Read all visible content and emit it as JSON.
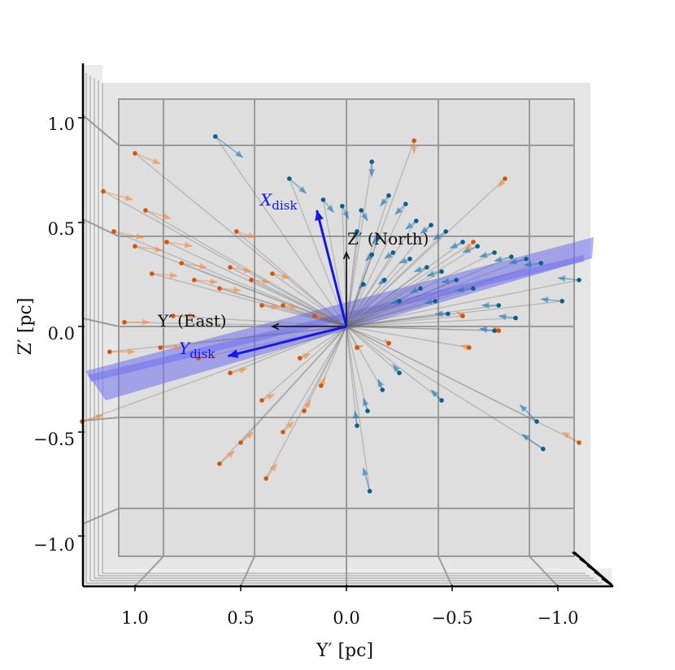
{
  "chart_data": {
    "type": "3d-quiver",
    "title": "",
    "xlabel": "Y′ [pc]",
    "ylabel": "Z′ [pc]",
    "x_ticks": [
      "1.0",
      "0.5",
      "0.0",
      "−0.5",
      "−1.0"
    ],
    "y_ticks": [
      "1.0",
      "0.5",
      "0.0",
      "−0.5",
      "−1.0"
    ],
    "xlim": [
      1.15,
      -1.15
    ],
    "ylim": [
      -1.2,
      1.2
    ],
    "grid": true,
    "axis_annotations": [
      {
        "text": "Z′ (North)",
        "color": "#111111"
      },
      {
        "text": "Y′ (East)",
        "color": "#111111"
      },
      {
        "text": "X",
        "sub": "disk",
        "color": "#1515ee"
      },
      {
        "text": "Y",
        "sub": "disk",
        "color": "#1515ee"
      }
    ],
    "reference_vectors": [
      {
        "name": "Z′ (North)",
        "dx": 0.0,
        "dy": 0.35,
        "color": "#111111"
      },
      {
        "name": "Y′ (East)",
        "dx": 0.35,
        "dy": 0.0,
        "color": "#111111"
      },
      {
        "name": "Xdisk",
        "dx": 0.14,
        "dy": 0.55,
        "color": "#1515ee"
      },
      {
        "name": "Ydisk",
        "dx": 0.56,
        "dy": -0.14,
        "color": "#1515ee"
      }
    ],
    "disk_plane": {
      "color": "#6f6ff0",
      "slope": 0.26
    },
    "series": [
      {
        "color": "#1f77b4",
        "point_color": "#0b5f8f",
        "points": [
          {
            "x": 0.62,
            "y": 0.9,
            "dx": -0.13,
            "dy": -0.1
          },
          {
            "x": 0.27,
            "y": 0.7,
            "dx": -0.08,
            "dy": -0.07
          },
          {
            "x": 0.11,
            "y": 0.6,
            "dx": -0.05,
            "dy": -0.06
          },
          {
            "x": 0.02,
            "y": 0.57,
            "dx": -0.03,
            "dy": -0.06
          },
          {
            "x": -0.07,
            "y": 0.55,
            "dx": -0.03,
            "dy": -0.05
          },
          {
            "x": -0.12,
            "y": 0.78,
            "dx": 0.0,
            "dy": -0.07
          },
          {
            "x": -0.2,
            "y": 0.62,
            "dx": 0.04,
            "dy": -0.05
          },
          {
            "x": -0.28,
            "y": 0.58,
            "dx": 0.05,
            "dy": -0.05
          },
          {
            "x": -0.33,
            "y": 0.5,
            "dx": 0.05,
            "dy": -0.04
          },
          {
            "x": -0.4,
            "y": 0.48,
            "dx": 0.05,
            "dy": -0.04
          },
          {
            "x": -0.47,
            "y": 0.45,
            "dx": 0.06,
            "dy": -0.04
          },
          {
            "x": -0.55,
            "y": 0.4,
            "dx": 0.06,
            "dy": -0.03
          },
          {
            "x": -0.62,
            "y": 0.38,
            "dx": 0.07,
            "dy": -0.03
          },
          {
            "x": -0.7,
            "y": 0.35,
            "dx": 0.07,
            "dy": -0.02
          },
          {
            "x": -0.78,
            "y": 0.33,
            "dx": 0.08,
            "dy": -0.02
          },
          {
            "x": -0.85,
            "y": 0.32,
            "dx": 0.08,
            "dy": -0.02
          },
          {
            "x": -0.92,
            "y": 0.3,
            "dx": 0.08,
            "dy": -0.01
          },
          {
            "x": -0.3,
            "y": 0.32,
            "dx": 0.05,
            "dy": -0.02
          },
          {
            "x": -0.38,
            "y": 0.28,
            "dx": 0.06,
            "dy": -0.02
          },
          {
            "x": -0.45,
            "y": 0.26,
            "dx": 0.07,
            "dy": -0.02
          },
          {
            "x": -0.52,
            "y": 0.22,
            "dx": 0.07,
            "dy": -0.01
          },
          {
            "x": -0.6,
            "y": 0.18,
            "dx": 0.08,
            "dy": -0.01
          },
          {
            "x": -0.22,
            "y": 0.35,
            "dx": 0.04,
            "dy": -0.03
          },
          {
            "x": -0.15,
            "y": 0.42,
            "dx": 0.03,
            "dy": -0.03
          },
          {
            "x": -0.72,
            "y": 0.1,
            "dx": 0.08,
            "dy": 0.0
          },
          {
            "x": -0.8,
            "y": 0.04,
            "dx": 0.08,
            "dy": 0.01
          },
          {
            "x": -1.1,
            "y": 0.22,
            "dx": 0.1,
            "dy": 0.01
          },
          {
            "x": -1.02,
            "y": 0.12,
            "dx": 0.1,
            "dy": 0.01
          },
          {
            "x": -0.7,
            "y": -0.02,
            "dx": 0.07,
            "dy": 0.01
          },
          {
            "x": -0.48,
            "y": 0.06,
            "dx": 0.06,
            "dy": 0.0
          },
          {
            "x": -0.25,
            "y": -0.22,
            "dx": 0.03,
            "dy": 0.04
          },
          {
            "x": -0.17,
            "y": -0.3,
            "dx": 0.02,
            "dy": 0.05
          },
          {
            "x": -0.1,
            "y": -0.4,
            "dx": 0.02,
            "dy": 0.06
          },
          {
            "x": -0.05,
            "y": -0.47,
            "dx": 0.01,
            "dy": 0.07
          },
          {
            "x": -0.11,
            "y": -0.78,
            "dx": 0.03,
            "dy": 0.11
          },
          {
            "x": -0.45,
            "y": -0.35,
            "dx": 0.05,
            "dy": 0.05
          },
          {
            "x": -0.9,
            "y": -0.45,
            "dx": 0.08,
            "dy": 0.08
          },
          {
            "x": -0.93,
            "y": -0.58,
            "dx": 0.1,
            "dy": 0.07
          },
          {
            "x": -0.08,
            "y": 0.2,
            "dx": 0.02,
            "dy": -0.02
          },
          {
            "x": -0.18,
            "y": 0.22,
            "dx": 0.03,
            "dy": -0.02
          },
          {
            "x": -0.35,
            "y": 0.18,
            "dx": 0.05,
            "dy": -0.02
          },
          {
            "x": -0.42,
            "y": 0.12,
            "dx": 0.05,
            "dy": -0.01
          },
          {
            "x": -0.25,
            "y": 0.12,
            "dx": 0.04,
            "dy": -0.01
          },
          {
            "x": -0.12,
            "y": 0.34,
            "dx": 0.03,
            "dy": -0.03
          },
          {
            "x": -0.05,
            "y": 0.45,
            "dx": 0.02,
            "dy": -0.04
          }
        ]
      },
      {
        "color": "#f08a3c",
        "point_color": "#d1550a",
        "points": [
          {
            "x": 1.0,
            "y": 0.82,
            "dx": -0.12,
            "dy": -0.05
          },
          {
            "x": 1.15,
            "y": 0.64,
            "dx": -0.14,
            "dy": -0.04
          },
          {
            "x": 0.95,
            "y": 0.55,
            "dx": -0.12,
            "dy": -0.04
          },
          {
            "x": 1.1,
            "y": 0.45,
            "dx": -0.14,
            "dy": -0.03
          },
          {
            "x": 1.0,
            "y": 0.38,
            "dx": -0.13,
            "dy": -0.02
          },
          {
            "x": 0.85,
            "y": 0.4,
            "dx": -0.12,
            "dy": -0.02
          },
          {
            "x": 0.78,
            "y": 0.3,
            "dx": -0.12,
            "dy": -0.02
          },
          {
            "x": 0.92,
            "y": 0.25,
            "dx": -0.12,
            "dy": -0.01
          },
          {
            "x": 0.72,
            "y": 0.22,
            "dx": -0.11,
            "dy": -0.01
          },
          {
            "x": 0.6,
            "y": 0.18,
            "dx": -0.1,
            "dy": -0.01
          },
          {
            "x": 0.55,
            "y": 0.28,
            "dx": -0.1,
            "dy": -0.02
          },
          {
            "x": 0.52,
            "y": 0.45,
            "dx": -0.09,
            "dy": -0.03
          },
          {
            "x": 0.45,
            "y": 0.22,
            "dx": -0.09,
            "dy": -0.01
          },
          {
            "x": 0.4,
            "y": 0.1,
            "dx": -0.08,
            "dy": -0.01
          },
          {
            "x": 0.35,
            "y": 0.25,
            "dx": -0.08,
            "dy": -0.02
          },
          {
            "x": 0.3,
            "y": 0.1,
            "dx": -0.07,
            "dy": -0.01
          },
          {
            "x": 1.05,
            "y": 0.02,
            "dx": -0.12,
            "dy": 0.0
          },
          {
            "x": 0.82,
            "y": 0.05,
            "dx": -0.11,
            "dy": 0.0
          },
          {
            "x": 1.12,
            "y": -0.12,
            "dx": -0.12,
            "dy": 0.0
          },
          {
            "x": 0.88,
            "y": -0.1,
            "dx": -0.1,
            "dy": 0.0
          },
          {
            "x": 0.7,
            "y": -0.15,
            "dx": -0.09,
            "dy": 0.01
          },
          {
            "x": 0.55,
            "y": -0.22,
            "dx": -0.08,
            "dy": 0.02
          },
          {
            "x": 0.4,
            "y": -0.35,
            "dx": -0.06,
            "dy": 0.03
          },
          {
            "x": 0.3,
            "y": -0.5,
            "dx": -0.05,
            "dy": 0.05
          },
          {
            "x": 0.5,
            "y": -0.55,
            "dx": -0.06,
            "dy": 0.05
          },
          {
            "x": 0.6,
            "y": -0.65,
            "dx": -0.07,
            "dy": 0.06
          },
          {
            "x": 0.38,
            "y": -0.72,
            "dx": -0.05,
            "dy": 0.07
          },
          {
            "x": 0.2,
            "y": -0.4,
            "dx": -0.03,
            "dy": 0.05
          },
          {
            "x": 0.12,
            "y": -0.28,
            "dx": -0.02,
            "dy": 0.04
          },
          {
            "x": 1.25,
            "y": -0.45,
            "dx": -0.1,
            "dy": 0.03
          },
          {
            "x": 0.15,
            "y": 0.05,
            "dx": -0.05,
            "dy": 0.0
          },
          {
            "x": 0.22,
            "y": -0.15,
            "dx": -0.05,
            "dy": 0.02
          },
          {
            "x": -0.05,
            "y": -0.1,
            "dx": -0.03,
            "dy": 0.01
          },
          {
            "x": -0.32,
            "y": 0.88,
            "dx": 0.0,
            "dy": -0.06
          },
          {
            "x": -0.6,
            "y": 0.4,
            "dx": 0.04,
            "dy": -0.04
          },
          {
            "x": -0.75,
            "y": 0.7,
            "dx": 0.03,
            "dy": -0.04
          },
          {
            "x": -0.55,
            "y": 0.05,
            "dx": 0.03,
            "dy": 0.02
          },
          {
            "x": -0.72,
            "y": -0.02,
            "dx": 0.03,
            "dy": 0.02
          },
          {
            "x": -1.1,
            "y": -0.55,
            "dx": 0.08,
            "dy": 0.05
          },
          {
            "x": -0.58,
            "y": -0.1,
            "dx": 0.04,
            "dy": 0.01
          },
          {
            "x": -0.2,
            "y": -0.08,
            "dx": 0.02,
            "dy": 0.02
          }
        ]
      }
    ]
  }
}
